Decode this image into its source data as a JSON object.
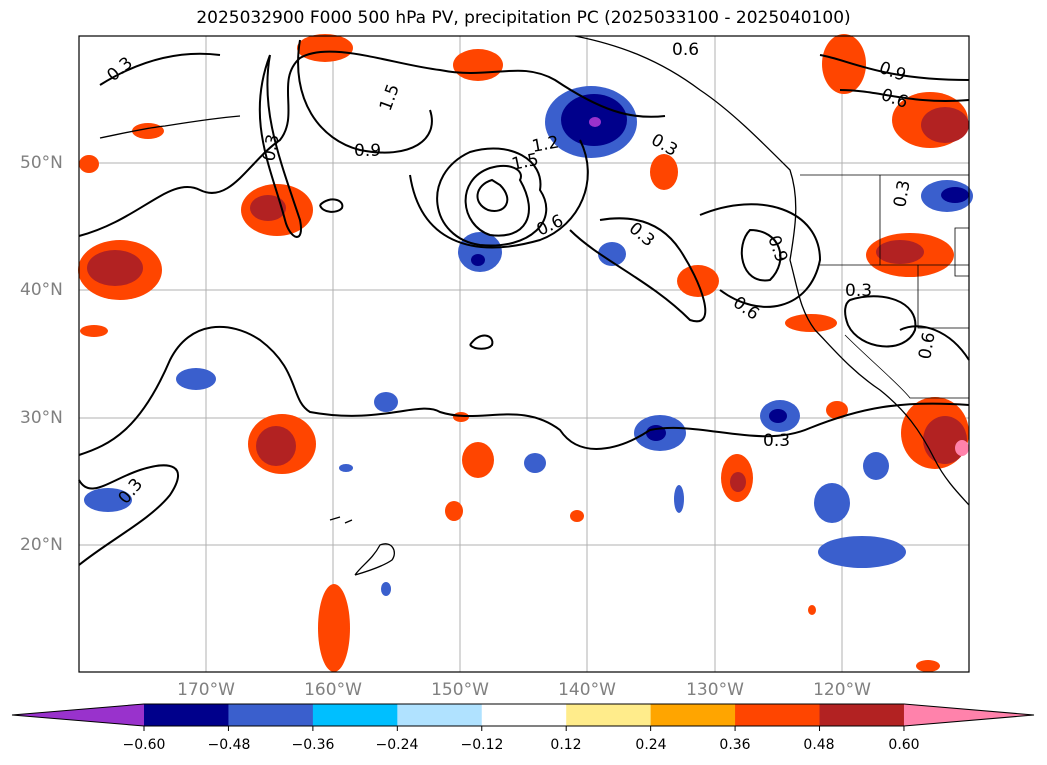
{
  "title": "2025032900 F000 500 hPa PV, precipitation PC (2025033100 - 2025040100)",
  "map": {
    "lat_labels": [
      "50°N",
      "40°N",
      "30°N",
      "20°N"
    ],
    "lon_labels": [
      "170°W",
      "160°W",
      "150°W",
      "140°W",
      "130°W",
      "120°W"
    ],
    "contour_labels": [
      "0.3",
      "0.3",
      "0.3",
      "1.5",
      "1.2",
      "1.5",
      "0.9",
      "0.6",
      "0.3",
      "0.6",
      "0.3",
      "0.6",
      "0.9",
      "0.9",
      "0.6",
      "0.3",
      "0.3",
      "0.3",
      "0.6"
    ]
  },
  "colorbar": {
    "tick_labels": [
      "−0.60",
      "−0.48",
      "−0.36",
      "−0.24",
      "−0.12",
      "0.12",
      "0.24",
      "0.36",
      "0.48",
      "0.60"
    ],
    "colors": [
      "#9932cc",
      "#00008b",
      "#3a5fcd",
      "#00bfff",
      "#b0e2ff",
      "#ffffff",
      "#ffec8b",
      "#ffa500",
      "#ff4500",
      "#b22222",
      "#ff82ab"
    ]
  }
}
